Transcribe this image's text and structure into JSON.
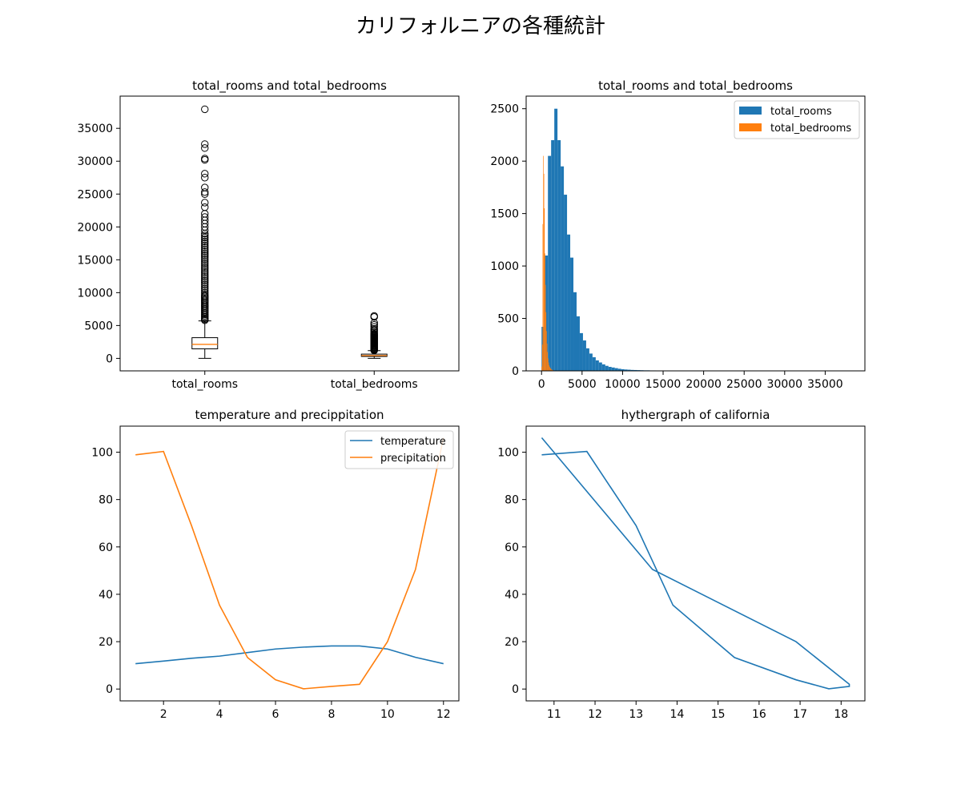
{
  "figure": {
    "suptitle": "カリフォルニアの各種統計"
  },
  "colors": {
    "blue": "#1f77b4",
    "orange": "#ff7f0e",
    "axis": "#000000"
  },
  "chart_data": [
    {
      "id": "boxplot",
      "type": "box",
      "title": "total_rooms and total_bedrooms",
      "categories": [
        "total_rooms",
        "total_bedrooms"
      ],
      "ylim": [
        -1900,
        39900
      ],
      "yticks": [
        0,
        5000,
        10000,
        15000,
        20000,
        25000,
        30000,
        35000
      ],
      "boxes": [
        {
          "name": "total_rooms",
          "whisker_low": 2,
          "q1": 1448,
          "median": 2127,
          "q3": 3148,
          "whisker_high": 5700,
          "outliers": [
            5800,
            5950,
            6100,
            6300,
            6500,
            6700,
            6900,
            7100,
            7300,
            7500,
            7700,
            7900,
            8100,
            8300,
            8500,
            8700,
            8900,
            9100,
            9300,
            9500,
            9700,
            10000,
            10300,
            10600,
            10900,
            11200,
            11500,
            11800,
            12100,
            12400,
            12700,
            13000,
            13300,
            13600,
            13900,
            14200,
            14500,
            14800,
            15100,
            15400,
            15700,
            16000,
            16300,
            16600,
            16900,
            17200,
            17500,
            17800,
            18100,
            18400,
            18700,
            19000,
            19500,
            20000,
            20500,
            21000,
            21500,
            22000,
            23000,
            23700,
            25000,
            25300,
            26000,
            27500,
            28100,
            30200,
            30400,
            32000,
            32600,
            37900
          ]
        },
        {
          "name": "total_bedrooms",
          "whisker_low": 1,
          "q1": 296,
          "median": 435,
          "q3": 647,
          "whisker_high": 1173,
          "outliers": [
            1200,
            1300,
            1400,
            1500,
            1600,
            1700,
            1800,
            1900,
            2000,
            2100,
            2200,
            2300,
            2400,
            2500,
            2600,
            2700,
            2800,
            2900,
            3000,
            3100,
            3200,
            3300,
            3400,
            3500,
            3600,
            3700,
            3900,
            4100,
            4300,
            4500,
            4800,
            5100,
            5400,
            6300,
            6450
          ]
        }
      ]
    },
    {
      "id": "histogram",
      "type": "histogram",
      "title": "total_rooms and total_bedrooms",
      "xlim": [
        -1900,
        39900
      ],
      "ylim": [
        0,
        2620
      ],
      "xticks": [
        0,
        5000,
        10000,
        15000,
        20000,
        25000,
        30000,
        35000
      ],
      "yticks": [
        0,
        500,
        1000,
        1500,
        2000,
        2500
      ],
      "legend_position": "upper right",
      "series": [
        {
          "name": "total_rooms",
          "bin_start": 2,
          "bin_width": 393,
          "counts": [
            420,
            1100,
            2050,
            2200,
            2500,
            2200,
            1950,
            1680,
            1300,
            1080,
            750,
            520,
            360,
            290,
            215,
            165,
            130,
            100,
            80,
            62,
            48,
            38,
            32,
            26,
            20,
            16,
            13,
            11,
            9,
            8,
            7,
            6,
            5,
            5,
            4,
            4,
            3,
            3,
            3,
            2,
            2,
            2,
            2,
            2,
            1,
            1,
            1,
            1,
            1,
            1,
            1,
            1,
            1,
            1,
            1,
            1
          ]
        },
        {
          "name": "total_bedrooms",
          "bin_start": 1,
          "bin_width": 64.5,
          "counts": [
            40,
            250,
            1400,
            2050,
            1880,
            1550,
            1120,
            820,
            560,
            380,
            260,
            180,
            120,
            80,
            55,
            40,
            30,
            22,
            16,
            12,
            9,
            7,
            5,
            4,
            3,
            3,
            2,
            2,
            2,
            1
          ]
        }
      ]
    },
    {
      "id": "climate",
      "type": "line",
      "title": "temperature and precippitation",
      "xlim": [
        0.45,
        12.55
      ],
      "ylim": [
        -5,
        111
      ],
      "xticks": [
        2,
        4,
        6,
        8,
        10,
        12
      ],
      "yticks": [
        0,
        20,
        40,
        60,
        80,
        100
      ],
      "legend_position": "upper right",
      "x": [
        1,
        2,
        3,
        4,
        5,
        6,
        7,
        8,
        9,
        10,
        11,
        12
      ],
      "series": [
        {
          "name": "temperature",
          "values": [
            10.7,
            11.8,
            13.0,
            13.9,
            15.4,
            16.9,
            17.7,
            18.2,
            18.2,
            16.9,
            13.4,
            10.7
          ]
        },
        {
          "name": "precipitation",
          "values": [
            98.9,
            100.3,
            69.0,
            35.4,
            13.3,
            3.9,
            0.1,
            1.1,
            2.0,
            20.0,
            50.5,
            106.1
          ]
        }
      ]
    },
    {
      "id": "hythergraph",
      "type": "line",
      "title": "hythergraph of california",
      "xlim": [
        10.32,
        18.58
      ],
      "ylim": [
        -5,
        111
      ],
      "xticks": [
        11,
        12,
        13,
        14,
        15,
        16,
        17,
        18
      ],
      "yticks": [
        0,
        20,
        40,
        60,
        80,
        100
      ],
      "series": [
        {
          "x": [
            10.7,
            11.8,
            13.0,
            13.9,
            15.4,
            16.9,
            17.7,
            18.2,
            18.2,
            16.9,
            13.4,
            10.7
          ],
          "y": [
            98.9,
            100.3,
            69.0,
            35.4,
            13.3,
            3.9,
            0.1,
            1.1,
            2.0,
            20.0,
            50.5,
            106.1
          ]
        }
      ]
    }
  ]
}
